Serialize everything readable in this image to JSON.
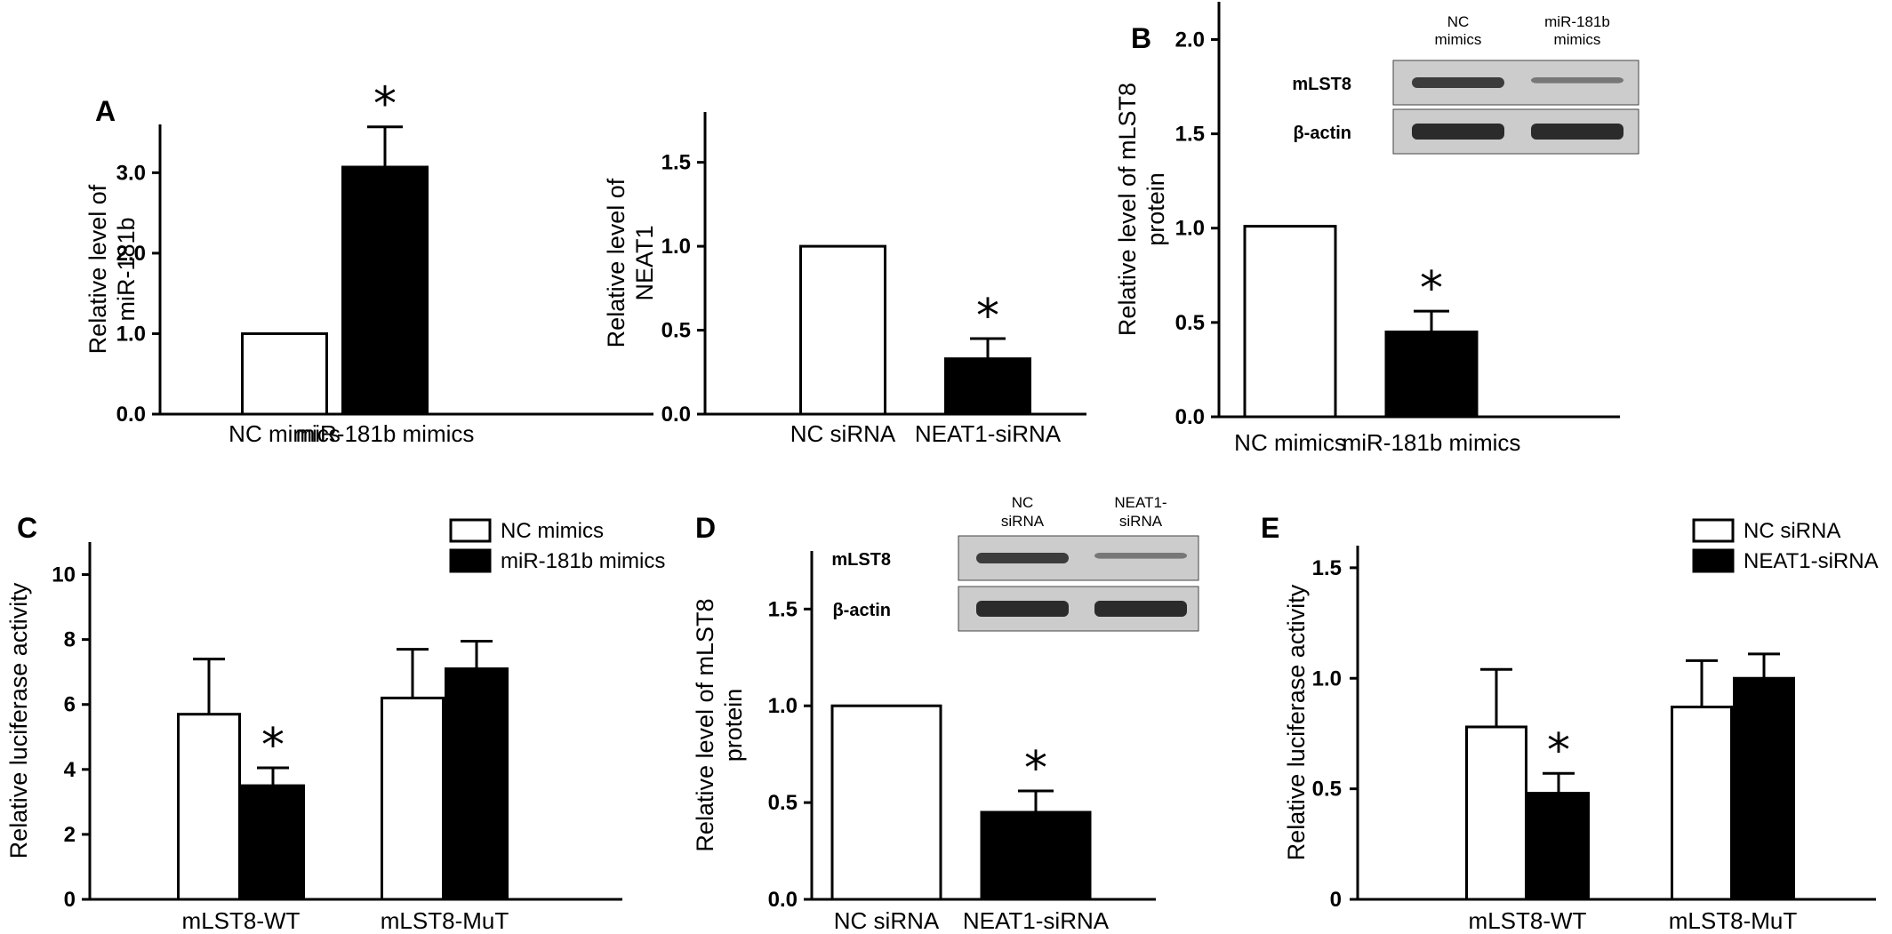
{
  "colors": {
    "control": "#ffffff",
    "treatment": "#000000",
    "stroke": "#000000",
    "blot_bg": "#cccccc",
    "band": "#222222"
  },
  "chart_data": [
    {
      "id": "a1",
      "panel_label": "A",
      "type": "bar",
      "ylabel": [
        "Relative level of",
        "miR-181b"
      ],
      "categories": [
        "NC mimics",
        "miR-181b mimics"
      ],
      "values": [
        1.0,
        3.07
      ],
      "errors": [
        0,
        0.5
      ],
      "significant": [
        false,
        true
      ],
      "ylim": [
        0,
        3.6
      ],
      "ticks": [
        "0.0",
        "1.0",
        "2.0",
        "3.0"
      ],
      "tick_values": [
        0,
        1,
        2,
        3
      ]
    },
    {
      "id": "a2",
      "panel_label": "",
      "type": "bar",
      "ylabel": [
        "Relative level of",
        "NEAT1"
      ],
      "categories": [
        "NC siRNA",
        "NEAT1-siRNA"
      ],
      "values": [
        1.0,
        0.33
      ],
      "errors": [
        0,
        0.12
      ],
      "significant": [
        false,
        true
      ],
      "ylim": [
        0,
        1.8
      ],
      "ticks": [
        "0.0",
        "0.5",
        "1.0",
        "1.5"
      ],
      "tick_values": [
        0,
        0.5,
        1,
        1.5
      ]
    },
    {
      "id": "b",
      "panel_label": "B",
      "type": "bar",
      "ylabel": [
        "Relative level of mLST8",
        "protein"
      ],
      "categories": [
        "NC mimics",
        "miR-181b mimics"
      ],
      "values": [
        1.01,
        0.45
      ],
      "errors": [
        0,
        0.11
      ],
      "significant": [
        false,
        true
      ],
      "ylim": [
        0,
        2.2
      ],
      "ticks": [
        "0.0",
        "0.5",
        "1.0",
        "1.5",
        "2.0"
      ],
      "tick_values": [
        0,
        0.5,
        1,
        1.5,
        2
      ]
    },
    {
      "id": "c",
      "panel_label": "C",
      "type": "bar",
      "ylabel": [
        "Relative luciferase activity"
      ],
      "categories": [
        "mLST8-WT",
        "mLST8-MuT"
      ],
      "series": [
        {
          "name": "NC mimics",
          "values": [
            5.7,
            6.2
          ],
          "errors": [
            1.7,
            1.5
          ],
          "significant": [
            false,
            false
          ]
        },
        {
          "name": "miR-181b mimics",
          "values": [
            3.5,
            7.1
          ],
          "errors": [
            0.55,
            0.85
          ],
          "significant": [
            true,
            false
          ]
        }
      ],
      "ylim": [
        0,
        11
      ],
      "ticks": [
        "0",
        "2",
        "4",
        "6",
        "8",
        "10"
      ],
      "tick_values": [
        0,
        2,
        4,
        6,
        8,
        10
      ]
    },
    {
      "id": "d",
      "panel_label": "D",
      "type": "bar",
      "ylabel": [
        "Relative level of mLST8",
        "protein"
      ],
      "categories": [
        "NC siRNA",
        "NEAT1-siRNA"
      ],
      "values": [
        1.0,
        0.45
      ],
      "errors": [
        0,
        0.11
      ],
      "significant": [
        false,
        true
      ],
      "ylim": [
        0,
        1.8
      ],
      "ticks": [
        "0.0",
        "0.5",
        "1.0",
        "1.5"
      ],
      "tick_values": [
        0,
        0.5,
        1,
        1.5
      ]
    },
    {
      "id": "e",
      "panel_label": "E",
      "type": "bar",
      "ylabel": [
        "Relative luciferase activity"
      ],
      "categories": [
        "mLST8-WT",
        "mLST8-MuT"
      ],
      "series": [
        {
          "name": "NC siRNA",
          "values": [
            0.78,
            0.87
          ],
          "errors": [
            0.26,
            0.21
          ],
          "significant": [
            false,
            false
          ]
        },
        {
          "name": "NEAT1-siRNA",
          "values": [
            0.48,
            1.0
          ],
          "errors": [
            0.09,
            0.11
          ],
          "significant": [
            true,
            false
          ]
        }
      ],
      "ylim": [
        0,
        1.6
      ],
      "ticks": [
        "0",
        "0.5",
        "1.0",
        "1.5"
      ],
      "tick_values": [
        0,
        0.5,
        1,
        1.5
      ]
    }
  ],
  "blots": [
    {
      "id": "b",
      "lanes": [
        [
          "NC",
          "mimics"
        ],
        [
          "miR-181b",
          "mimics"
        ]
      ],
      "rows": [
        "mLST8",
        "β-actin"
      ]
    },
    {
      "id": "d",
      "lanes": [
        [
          "NC",
          "siRNA"
        ],
        [
          "NEAT1-",
          "siRNA"
        ]
      ],
      "rows": [
        "mLST8",
        "β-actin"
      ]
    }
  ],
  "significance_marker": "*"
}
